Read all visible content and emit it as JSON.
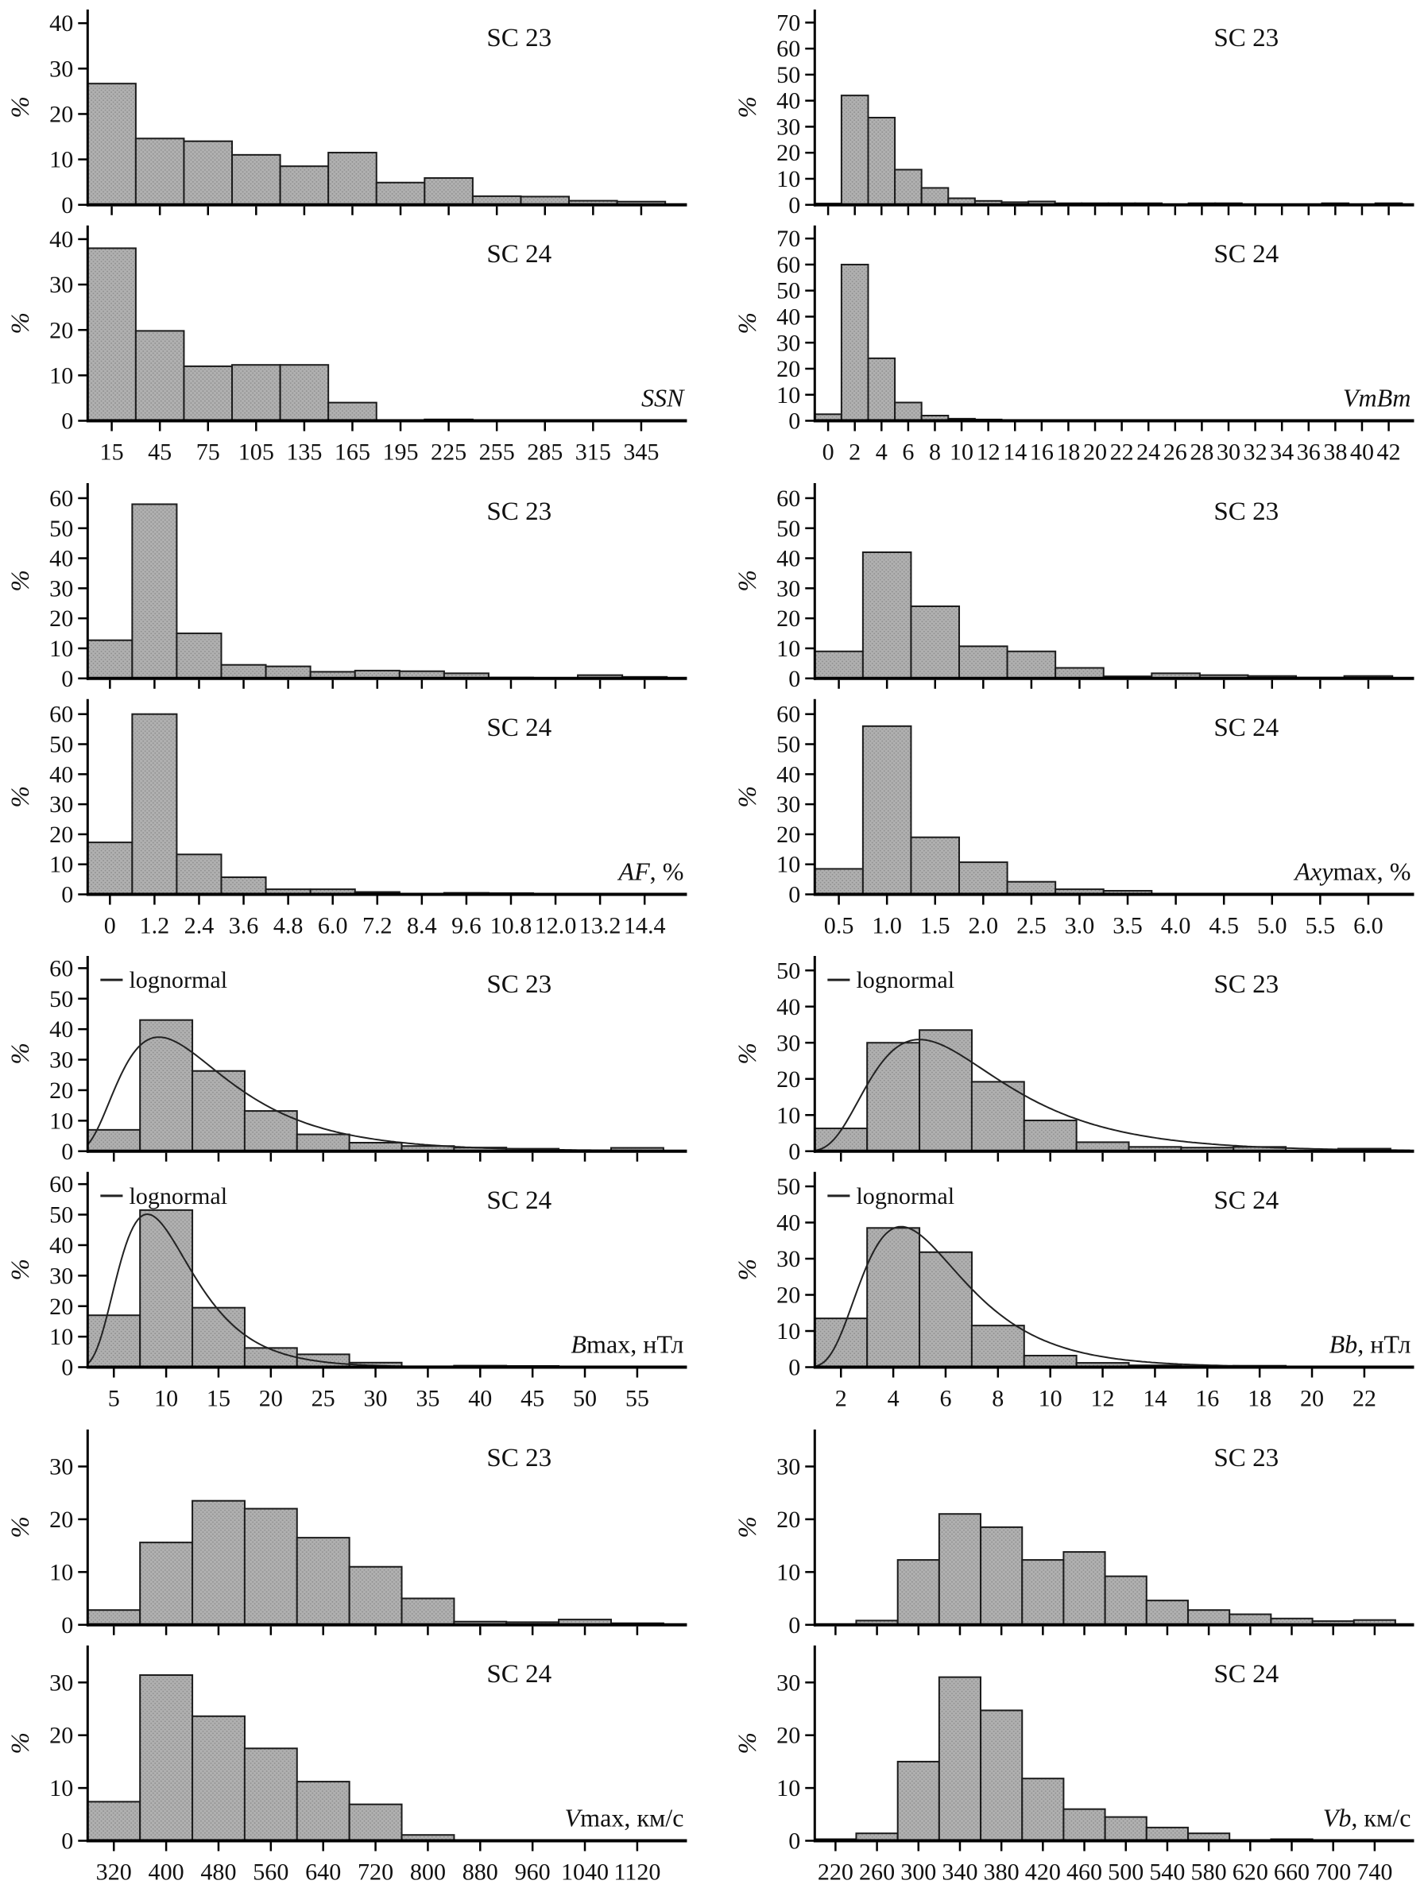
{
  "figure_title": "",
  "style": {
    "bar_fill": "#b0b0b0",
    "bar_dot": "#8e8e8e",
    "bar_stroke": "#1c1c1c",
    "axis_color": "#000000",
    "text_color": "#111111",
    "curve_color": "#222222",
    "background": "#ffffff"
  },
  "chart_data": [
    {
      "type": "bar",
      "key": "ssn",
      "title": "",
      "ylabel": "%",
      "grid": false,
      "categories": [
        "15",
        "45",
        "75",
        "105",
        "135",
        "165",
        "195",
        "225",
        "255",
        "285",
        "315",
        "345"
      ],
      "yticks": [
        0,
        10,
        20,
        30,
        40
      ],
      "ylim": [
        0,
        43
      ],
      "xlabel_parts": [
        {
          "text": "SSN",
          "italic": true
        }
      ],
      "series": [
        {
          "name": "SC 23",
          "values": [
            26.7,
            14.6,
            14,
            11,
            8.5,
            11.5,
            4.9,
            5.9,
            1.9,
            1.8,
            0.9,
            0.7
          ]
        },
        {
          "name": "SC 24",
          "values": [
            38,
            19.8,
            12,
            12.3,
            12.3,
            4,
            0,
            0.3,
            0,
            0,
            0,
            0
          ]
        }
      ]
    },
    {
      "type": "bar",
      "key": "vmbm",
      "title": "",
      "ylabel": "%",
      "grid": false,
      "categories": [
        "0",
        "2",
        "4",
        "6",
        "8",
        "10",
        "12",
        "14",
        "16",
        "18",
        "20",
        "22",
        "24",
        "26",
        "28",
        "30",
        "32",
        "34",
        "36",
        "38",
        "40",
        "42"
      ],
      "yticks": [
        0,
        10,
        20,
        30,
        40,
        50,
        60,
        70
      ],
      "ylim": [
        0,
        75
      ],
      "xlabel_parts": [
        {
          "text": "VmBm",
          "italic": true
        }
      ],
      "series": [
        {
          "name": "SC 23",
          "values": [
            0.5,
            42,
            33.5,
            13.5,
            6.5,
            2.5,
            1.5,
            1,
            1.3,
            0.6,
            0.6,
            0.6,
            0.6,
            0,
            0.6,
            0.6,
            0,
            0,
            0,
            0.6,
            0,
            0.6
          ]
        },
        {
          "name": "SC 24",
          "values": [
            2.5,
            60,
            24,
            7,
            2,
            0.8,
            0.5,
            0,
            0,
            0,
            0,
            0,
            0,
            0,
            0,
            0,
            0,
            0,
            0,
            0,
            0,
            0
          ]
        }
      ]
    },
    {
      "type": "bar",
      "key": "af",
      "title": "",
      "ylabel": "%",
      "grid": false,
      "categories": [
        "0",
        "1.2",
        "2.4",
        "3.6",
        "4.8",
        "6.0",
        "7.2",
        "8.4",
        "9.6",
        "10.8",
        "12.0",
        "13.2",
        "14.4"
      ],
      "yticks": [
        0,
        10,
        20,
        30,
        40,
        50,
        60
      ],
      "ylim": [
        0,
        65
      ],
      "xlabel_parts": [
        {
          "text": "AF",
          "italic": true
        },
        {
          "text": ", %",
          "italic": false
        }
      ],
      "series": [
        {
          "name": "SC 23",
          "values": [
            12.7,
            58,
            15,
            4.5,
            4,
            2.2,
            2.6,
            2.4,
            1.7,
            0.3,
            0,
            1.1,
            0.5
          ]
        },
        {
          "name": "SC 24",
          "values": [
            17.3,
            60,
            13.3,
            5.7,
            1.7,
            1.7,
            0.8,
            0.1,
            0.5,
            0.4,
            0,
            0,
            0
          ]
        }
      ]
    },
    {
      "type": "bar",
      "key": "axymax",
      "title": "",
      "ylabel": "%",
      "grid": false,
      "categories": [
        "0.5",
        "1.0",
        "1.5",
        "2.0",
        "2.5",
        "3.0",
        "3.5",
        "4.0",
        "4.5",
        "5.0",
        "5.5",
        "6.0"
      ],
      "yticks": [
        0,
        10,
        20,
        30,
        40,
        50,
        60
      ],
      "ylim": [
        0,
        65
      ],
      "xlabel_parts": [
        {
          "text": "Axy",
          "italic": true
        },
        {
          "text": "max, %",
          "italic": false
        }
      ],
      "series": [
        {
          "name": "SC 23",
          "values": [
            9,
            42,
            24,
            10.7,
            9,
            3.5,
            0.7,
            1.7,
            1.1,
            0.8,
            0.3,
            0.8
          ]
        },
        {
          "name": "SC 24",
          "values": [
            8.5,
            56,
            19,
            10.7,
            4.2,
            1.7,
            1.2,
            0,
            0,
            0,
            0,
            0
          ]
        }
      ]
    },
    {
      "type": "bar",
      "key": "bmax",
      "title": "",
      "ylabel": "%",
      "grid": false,
      "categories": [
        "5",
        "10",
        "15",
        "20",
        "25",
        "30",
        "35",
        "40",
        "45",
        "50",
        "55"
      ],
      "yticks": [
        0,
        10,
        20,
        30,
        40,
        50,
        60
      ],
      "ylim": [
        0,
        64
      ],
      "xlabel_parts": [
        {
          "text": "B",
          "italic": true
        },
        {
          "text": "max, нТл",
          "italic": false
        }
      ],
      "series": [
        {
          "name": "SC 23",
          "legend": "lognormal",
          "curve": {
            "mode": 9.3,
            "sigma": 0.55,
            "peak": 43.5
          },
          "values": [
            7,
            43,
            26.3,
            13.2,
            5.5,
            2.8,
            1.7,
            1.2,
            0.8,
            0.3,
            1.1
          ]
        },
        {
          "name": "SC 24",
          "legend": "lognormal",
          "curve": {
            "mode": 8.2,
            "sigma": 0.43,
            "peak": 55
          },
          "values": [
            17,
            51.5,
            19.5,
            6.3,
            4.2,
            1.5,
            0.3,
            0.5,
            0.4,
            0,
            0
          ]
        }
      ]
    },
    {
      "type": "bar",
      "key": "bb",
      "title": "",
      "ylabel": "%",
      "grid": false,
      "categories": [
        "2",
        "4",
        "6",
        "8",
        "10",
        "12",
        "14",
        "16",
        "18",
        "20",
        "22"
      ],
      "yticks": [
        0,
        10,
        20,
        30,
        40,
        50
      ],
      "ylim": [
        0,
        54
      ],
      "xlabel_parts": [
        {
          "text": "Bb",
          "italic": true
        },
        {
          "text": ", нТл",
          "italic": false
        }
      ],
      "series": [
        {
          "name": "SC 23",
          "legend": "lognormal",
          "curve": {
            "mode": 5.0,
            "sigma": 0.5,
            "peak": 35
          },
          "values": [
            6.3,
            30,
            33.5,
            19.2,
            8.5,
            2.5,
            1.2,
            1.0,
            1.2,
            0,
            0.7
          ]
        },
        {
          "name": "SC 24",
          "legend": "lognormal",
          "curve": {
            "mode": 4.3,
            "sigma": 0.45,
            "peak": 43
          },
          "values": [
            13.5,
            38.5,
            31.8,
            11.5,
            3.2,
            1.2,
            0.5,
            0.3,
            0.4,
            0,
            0
          ]
        }
      ]
    },
    {
      "type": "bar",
      "key": "vmax",
      "title": "",
      "ylabel": "%",
      "grid": false,
      "categories": [
        "320",
        "400",
        "480",
        "560",
        "640",
        "720",
        "800",
        "880",
        "960",
        "1040",
        "1120"
      ],
      "yticks": [
        0,
        10,
        20,
        30
      ],
      "ylim": [
        0,
        37
      ],
      "xlabel_parts": [
        {
          "text": "V",
          "italic": true
        },
        {
          "text": "max, км/с",
          "italic": false
        }
      ],
      "series": [
        {
          "name": "SC 23",
          "values": [
            2.8,
            15.6,
            23.5,
            22,
            16.5,
            11,
            5,
            0.6,
            0.5,
            1.0,
            0.3
          ]
        },
        {
          "name": "SC 24",
          "values": [
            7.4,
            31.4,
            23.6,
            17.5,
            11.2,
            6.9,
            1.1,
            0,
            0,
            0,
            0
          ]
        }
      ]
    },
    {
      "type": "bar",
      "key": "vb",
      "title": "",
      "ylabel": "%",
      "grid": false,
      "categories": [
        "220",
        "260",
        "300",
        "340",
        "380",
        "420",
        "460",
        "500",
        "540",
        "580",
        "620",
        "660",
        "700",
        "740"
      ],
      "yticks": [
        0,
        10,
        20,
        30
      ],
      "ylim": [
        0,
        37
      ],
      "xlabel_parts": [
        {
          "text": "Vb",
          "italic": true
        },
        {
          "text": ", км/с",
          "italic": false
        }
      ],
      "series": [
        {
          "name": "SC 23",
          "values": [
            0,
            0.8,
            12.3,
            21,
            18.5,
            12.3,
            13.8,
            9.2,
            4.6,
            2.8,
            2,
            1.2,
            0.7,
            0.9
          ]
        },
        {
          "name": "SC 24",
          "values": [
            0.3,
            1.4,
            15,
            31,
            24.7,
            11.8,
            6,
            4.5,
            2.5,
            1.4,
            0,
            0.3,
            0,
            0
          ]
        }
      ]
    }
  ]
}
